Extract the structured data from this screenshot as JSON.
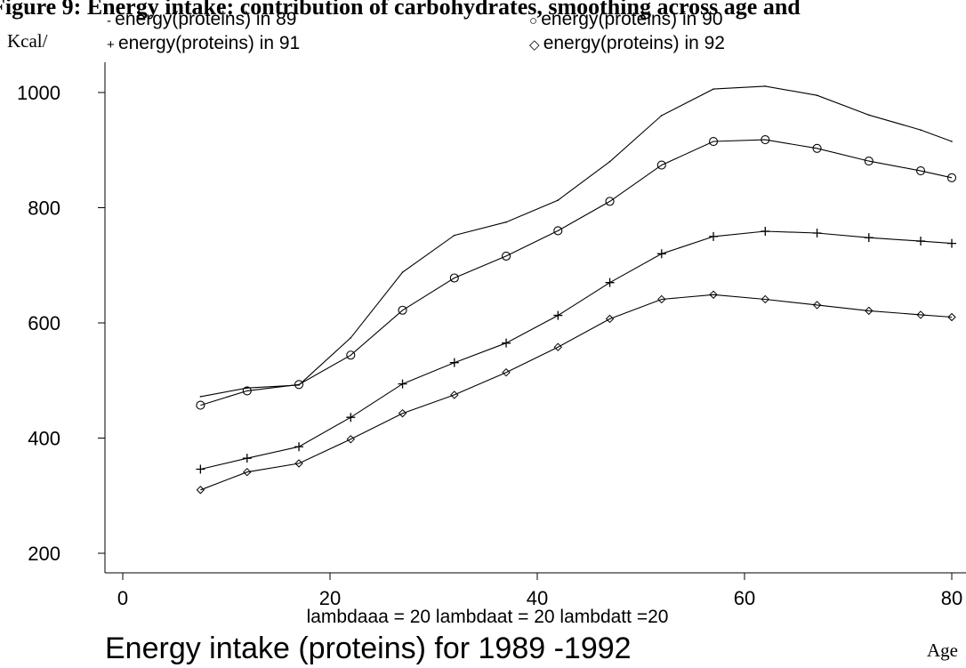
{
  "header_text": "Figure 9: Energy intake: contribution of carbohydrates, smoothing across age and",
  "chart_data": {
    "type": "line",
    "title": "Energy intake (proteins) for 1989 -1992",
    "subtitle": "lambdaaa = 20 lambdaat = 20 lambdatt =20",
    "xlabel": "Age",
    "ylabel": "Kcal/",
    "xlim": [
      0,
      80
    ],
    "ylim": [
      200,
      1000
    ],
    "x_ticks": [
      "0",
      "20",
      "40",
      "60",
      "80"
    ],
    "y_ticks": [
      "200",
      "400",
      "600",
      "800",
      "1000"
    ],
    "grid": false,
    "legend_placement": "top",
    "x": [
      7.5,
      12,
      17,
      22,
      27,
      32,
      37,
      42,
      47,
      52,
      57,
      62,
      67,
      72,
      77,
      80
    ],
    "series": [
      {
        "name": "energy(proteins) in 89",
        "legend_symbol": "- ",
        "marker": "none",
        "values": [
          472,
          487,
          492,
          574,
          688,
          752,
          775,
          813,
          880,
          960,
          1006,
          1011,
          995,
          961,
          935,
          915
        ]
      },
      {
        "name": "energy(proteins) in 90",
        "legend_symbol": "○ ",
        "marker": "circle",
        "values": [
          457,
          482,
          493,
          544,
          622,
          678,
          716,
          760,
          811,
          874,
          915,
          918,
          903,
          881,
          864,
          852
        ]
      },
      {
        "name": "energy(proteins) in 91",
        "legend_symbol": "+ ",
        "marker": "plus",
        "values": [
          346,
          365,
          385,
          436,
          494,
          531,
          565,
          613,
          670,
          720,
          750,
          759,
          756,
          748,
          742,
          738
        ]
      },
      {
        "name": "energy(proteins) in 92",
        "legend_symbol": "◇ ",
        "marker": "diamond",
        "values": [
          310,
          341,
          356,
          398,
          443,
          475,
          514,
          558,
          607,
          641,
          649,
          641,
          631,
          621,
          614,
          610
        ]
      }
    ]
  }
}
